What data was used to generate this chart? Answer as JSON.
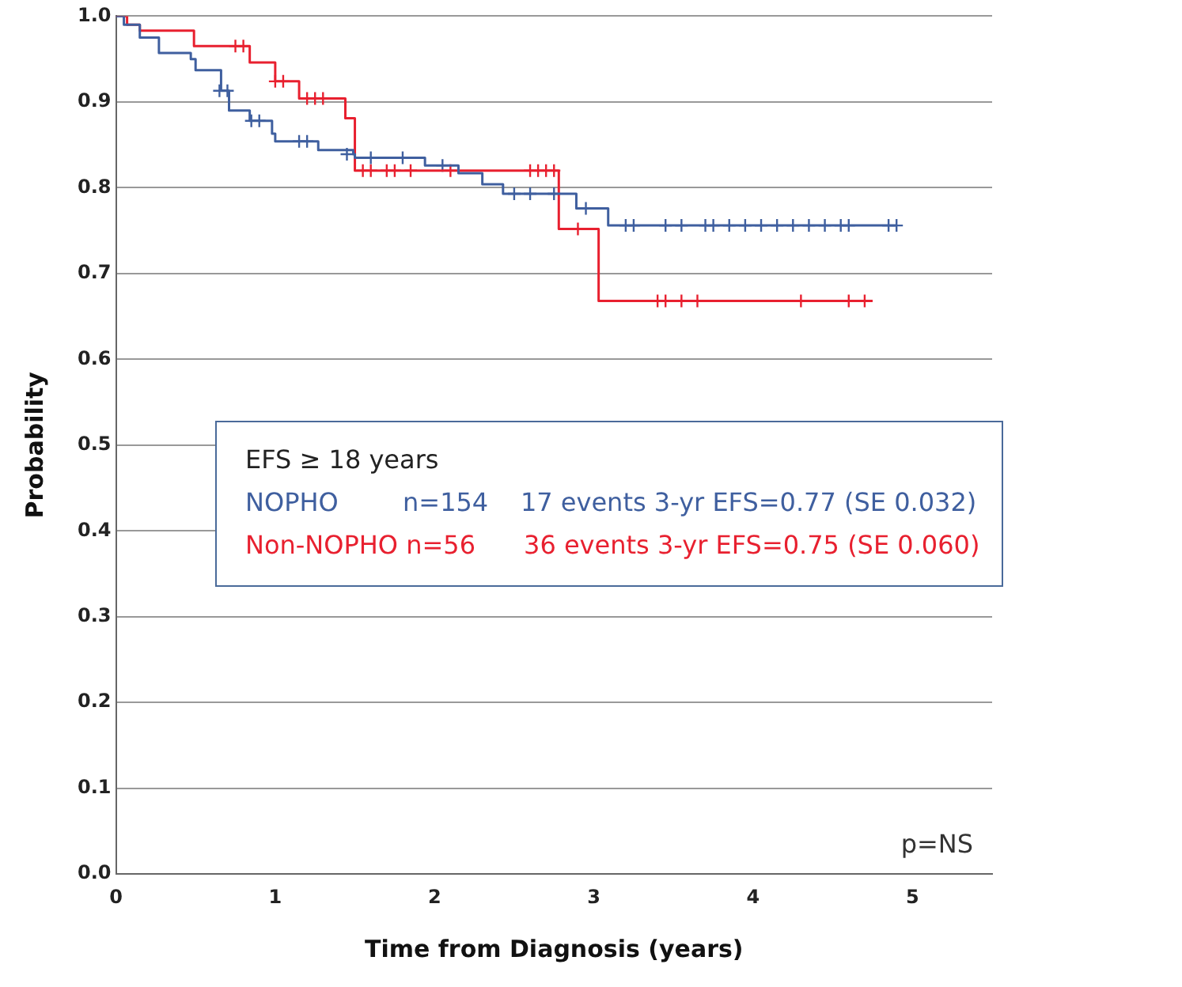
{
  "chart_data": {
    "type": "step",
    "xlabel": "Time from Diagnosis (years)",
    "ylabel": "Probability",
    "legend_title": "EFS ≥ 18 years",
    "legend": "bottom right",
    "grid": "y",
    "line_style": "solid",
    "xlim": [
      0,
      5.5
    ],
    "xticks": [
      0,
      1,
      2,
      3,
      4,
      5
    ],
    "ylim": [
      0,
      1
    ],
    "yticks": [
      {
        "value": 0,
        "label": "0.0"
      },
      {
        "value": 0.1,
        "label": "0.1"
      },
      {
        "value": 0.2,
        "label": "0.2"
      },
      {
        "value": 0.3,
        "label": "0.3"
      },
      {
        "value": 0.4,
        "label": "0.4"
      },
      {
        "value": 0.5,
        "label": "0.5"
      },
      {
        "value": 0.6,
        "label": "0.6"
      },
      {
        "value": 0.7,
        "label": "0.7"
      },
      {
        "value": 0.8,
        "label": "0.8"
      },
      {
        "value": 0.9,
        "label": "0.9"
      },
      {
        "value": 1,
        "label": "1.0"
      }
    ],
    "annotations": [
      "p=NS"
    ],
    "series": [
      {
        "name": "NOPHO        n=154    17 events 3-yr EFS=0.77 (SE 0.032)",
        "color": "#3f5f9f",
        "x": [
          0,
          0.05,
          0.15,
          0.27,
          0.47,
          0.5,
          0.66,
          0.71,
          0.84,
          0.98,
          1.0,
          1.27,
          1.49,
          1.5,
          1.94,
          2.15,
          2.3,
          2.43,
          2.89,
          3.09,
          4.9
        ],
        "values": [
          1,
          0.99,
          0.975,
          0.957,
          0.95,
          0.937,
          0.913,
          0.89,
          0.878,
          0.863,
          0.854,
          0.844,
          0.839,
          0.835,
          0.826,
          0.817,
          0.804,
          0.793,
          0.776,
          0.756,
          0.756
        ]
      },
      {
        "name": "Non-NOPHO n=56      36 events 3-yr EFS=0.75 (SE 0.060)",
        "color": "#e8202f",
        "x": [
          0,
          0.07,
          0.15,
          0.49,
          0.84,
          1.0,
          1.15,
          1.44,
          1.5,
          2.78,
          3.03,
          4.75
        ],
        "values": [
          1,
          0.99,
          0.983,
          0.965,
          0.946,
          0.924,
          0.904,
          0.881,
          0.82,
          0.752,
          0.668,
          0.668
        ]
      },
      {
        "color": "#3f5f9f",
        "type": "scatter",
        "marker": "cross",
        "x": [
          0.65,
          0.7,
          0.85,
          0.9,
          1.15,
          1.2,
          1.45,
          1.6,
          1.8,
          2.05,
          2.5,
          2.6,
          2.75,
          2.95,
          3.2,
          3.25,
          3.45,
          3.55,
          3.7,
          3.75,
          3.85,
          3.95,
          4.05,
          4.15,
          4.25,
          4.35,
          4.45,
          4.55,
          4.6,
          4.85,
          4.9
        ],
        "values": [
          0.913,
          0.913,
          0.878,
          0.878,
          0.854,
          0.854,
          0.839,
          0.835,
          0.835,
          0.826,
          0.793,
          0.793,
          0.793,
          0.776,
          0.756,
          0.756,
          0.756,
          0.756,
          0.756,
          0.756,
          0.756,
          0.756,
          0.756,
          0.756,
          0.756,
          0.756,
          0.756,
          0.756,
          0.756,
          0.756,
          0.756
        ]
      },
      {
        "color": "#e8202f",
        "type": "scatter",
        "marker": "cross",
        "x": [
          0.75,
          0.8,
          1.0,
          1.05,
          1.2,
          1.25,
          1.3,
          1.55,
          1.6,
          1.7,
          1.75,
          1.85,
          2.1,
          2.6,
          2.65,
          2.7,
          2.75,
          2.9,
          3.4,
          3.45,
          3.55,
          3.65,
          4.3,
          4.6,
          4.7
        ],
        "values": [
          0.965,
          0.965,
          0.924,
          0.924,
          0.904,
          0.904,
          0.904,
          0.82,
          0.82,
          0.82,
          0.82,
          0.82,
          0.82,
          0.82,
          0.82,
          0.82,
          0.82,
          0.752,
          0.668,
          0.668,
          0.668,
          0.668,
          0.668,
          0.668,
          0.668
        ]
      }
    ]
  }
}
